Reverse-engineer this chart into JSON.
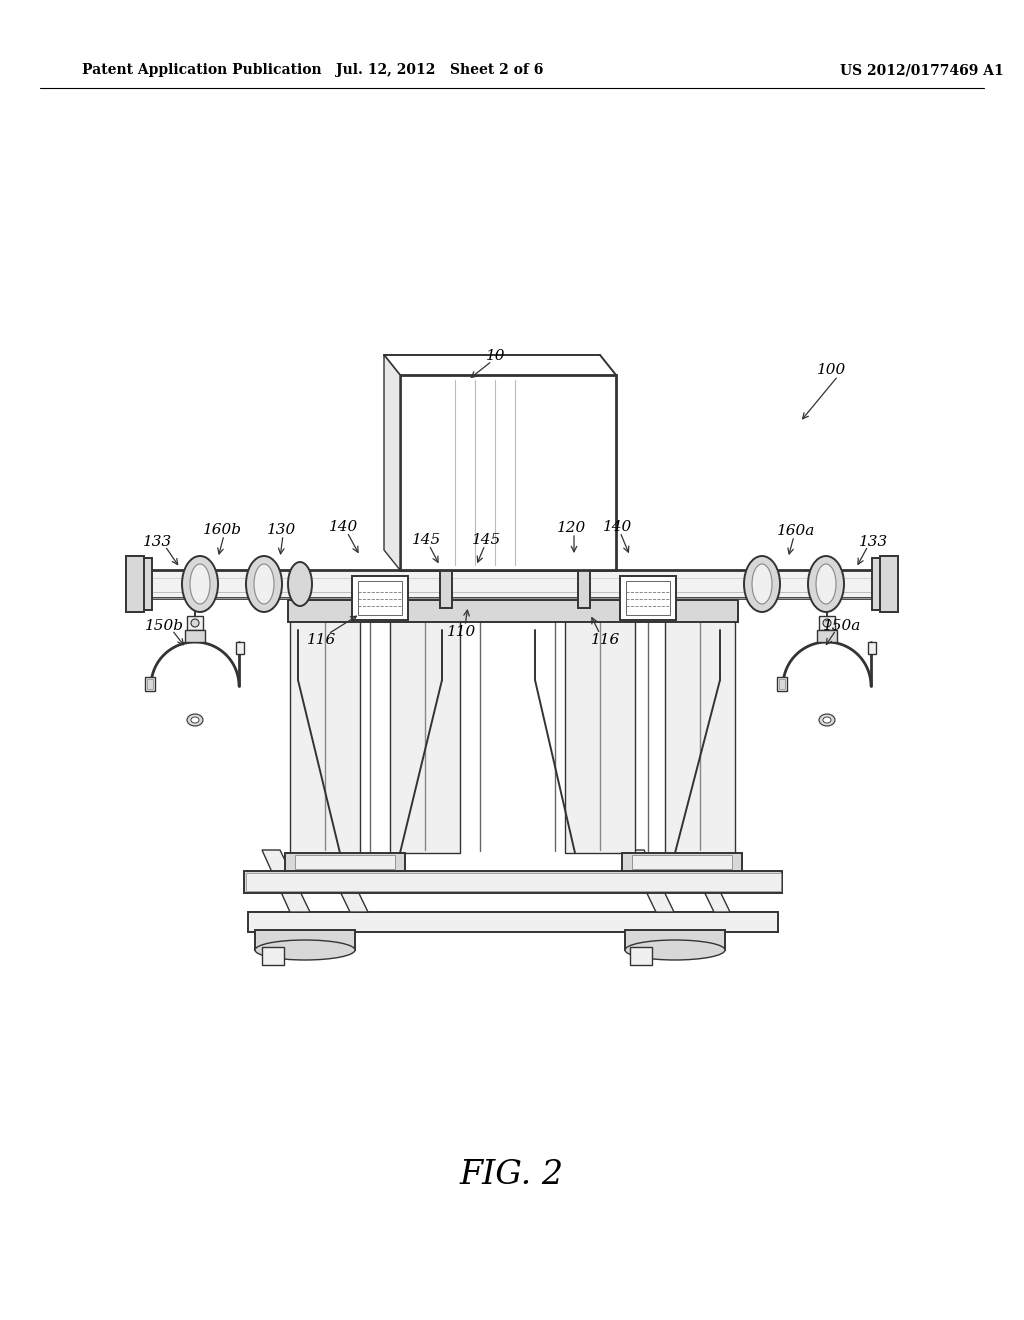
{
  "background_color": "#ffffff",
  "header_left": "Patent Application Publication",
  "header_center": "Jul. 12, 2012   Sheet 2 of 6",
  "header_right": "US 2012/0177469 A1",
  "figure_label": "FIG. 2",
  "line_color": "#333333",
  "light_fill": "#f0f0f0",
  "mid_fill": "#d8d8d8",
  "dark_fill": "#aaaaaa"
}
